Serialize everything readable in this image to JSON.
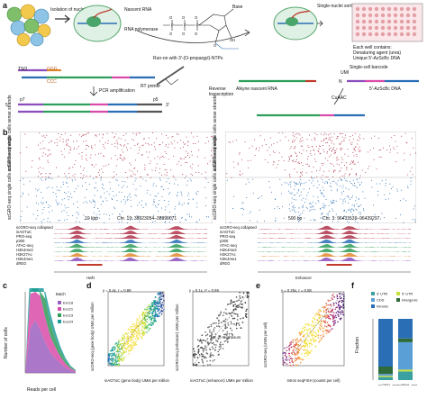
{
  "figure": {
    "panel_a": {
      "letter": "a",
      "isolation_label": "Isolation of nuclei",
      "nascent_rna": "Nascent RNA",
      "rna_pol": "RNA polymerase",
      "base": "Base",
      "runon": "Run-on with 3'-(O-propargyl)-NTPs",
      "sorting": "Single-nuclei sorting",
      "well_contains": "Each well contains:",
      "well_1": "Denaturing agent (urea)",
      "well_2": "Unique 5'-AzScBc DNA",
      "barcode": "Single-cell barcode",
      "umi": "UMI",
      "n3": "N",
      "azscbc": "5'-AzScBc DNA",
      "alkyne": "Alkyne nascent RNA",
      "cuaac": "CuAAC",
      "rt": "Reverse transcription",
      "rt_primer": "RT primer",
      "tso": "TSO",
      "ggg": "GGG",
      "ccc": "CCC",
      "pcr": "PCR amplification",
      "p7": "p7",
      "p5": "p5",
      "five": "5'",
      "three": "3'"
    },
    "panel_b": {
      "letter": "b",
      "left": {
        "ylab_sense": "scGRO-seq single cells sense strands",
        "ylab_anti": "scGRO-seq single cells antisense strands",
        "scale": "10 kbp",
        "coords": "Chr. 19: 38923054–38999071",
        "gene": "Hells"
      },
      "right": {
        "scale": "500 bp",
        "coords": "Chr. 3: 96431539–96439297",
        "gene": "Enhancer"
      },
      "tracks": [
        {
          "name": "scGRO-seq collapsed",
          "range": "[0–1]"
        },
        {
          "name": "inAGTuC",
          "range": "[0–1]"
        },
        {
          "name": "PRO-seq",
          "range": "[0–1]"
        },
        {
          "name": "p300",
          "range": "[0–1]"
        },
        {
          "name": "ATAC-seq",
          "range": "[0–1]"
        },
        {
          "name": "H3K4me3",
          "range": "[0–1]"
        },
        {
          "name": "H3K27Ac",
          "range": "[0–1]"
        },
        {
          "name": "H3K4me1",
          "range": "[0–1]"
        },
        {
          "name": "dREG",
          "range": ""
        }
      ]
    },
    "panel_c": {
      "letter": "c",
      "ylabel": "Number of cells",
      "xlabel": "Reads per cell",
      "legend_title": "Batch"
    },
    "panel_d": {
      "letter": "d",
      "left_eq": "y = 0.4x, r = 0.89",
      "left_ylabel": "scGRO-seq (gene body) UMIs per million",
      "left_xlabel": "inAGTuC (gene body) UMIs per million",
      "right_eq": "y = 0.1x, r² = 0.69",
      "right_ylabel": "scGRO-seq (enhancer) UMIs per million",
      "right_xlabel": "inAGTuC (enhancer) UMIs per million",
      "neighbours": "No. of neighbours"
    },
    "panel_e": {
      "letter": "e",
      "eq": "y = 0.25x, r = 0.58",
      "ylabel": "scGRO-seq (UMIs per cell)",
      "xlabel": "Intron seqFISH (counts per cell)"
    },
    "panel_f": {
      "letter": "f",
      "ylabel": "Fraction",
      "legend": [
        "3' UTR",
        "5' UTR",
        "CDS",
        "Intergenic",
        "Intronic"
      ],
      "x_labels": [
        "scGRO -seq",
        "scRNA -seq"
      ]
    }
  },
  "colors": {
    "blue": "#2a6fb5",
    "red": "#c0392b",
    "green": "#2f9e5b",
    "orange": "#e08a2e",
    "pink": "#d94ba8",
    "teal": "#1f9e9e"
  },
  "chart_data": [
    {
      "type": "area",
      "title": "",
      "xlabel": "Reads per cell",
      "ylabel": "Number of cells",
      "x": [
        0,
        1000,
        2000,
        3000,
        4000,
        5000,
        6000,
        7000,
        8000,
        9000,
        10000
      ],
      "ylim": [
        0,
        400
      ],
      "xlim": [
        0,
        10000
      ],
      "series": [
        {
          "name": "Exc18",
          "values": [
            0,
            220,
            260,
            210,
            150,
            100,
            70,
            45,
            25,
            12,
            5
          ]
        },
        {
          "name": "Exc21",
          "values": [
            0,
            170,
            210,
            170,
            120,
            80,
            55,
            35,
            20,
            10,
            4
          ]
        },
        {
          "name": "Exc23",
          "values": [
            0,
            130,
            160,
            130,
            95,
            65,
            45,
            28,
            16,
            8,
            3
          ]
        },
        {
          "name": "Exc24",
          "values": [
            0,
            90,
            115,
            95,
            70,
            48,
            32,
            20,
            11,
            5,
            2
          ]
        }
      ]
    },
    {
      "type": "bar",
      "title": "",
      "xlabel": "",
      "ylabel": "Fraction",
      "categories": [
        "scGRO -seq",
        "scRNA -seq"
      ],
      "ylim": [
        0,
        1
      ],
      "series": [
        {
          "name": "3' UTR",
          "values": [
            0.05,
            0.14
          ]
        },
        {
          "name": "5' UTR",
          "values": [
            0.02,
            0.03
          ]
        },
        {
          "name": "CDS",
          "values": [
            0.03,
            0.45
          ]
        },
        {
          "name": "Intergenic",
          "values": [
            0.12,
            0.06
          ]
        },
        {
          "name": "Intronic",
          "values": [
            0.78,
            0.32
          ]
        }
      ]
    }
  ]
}
